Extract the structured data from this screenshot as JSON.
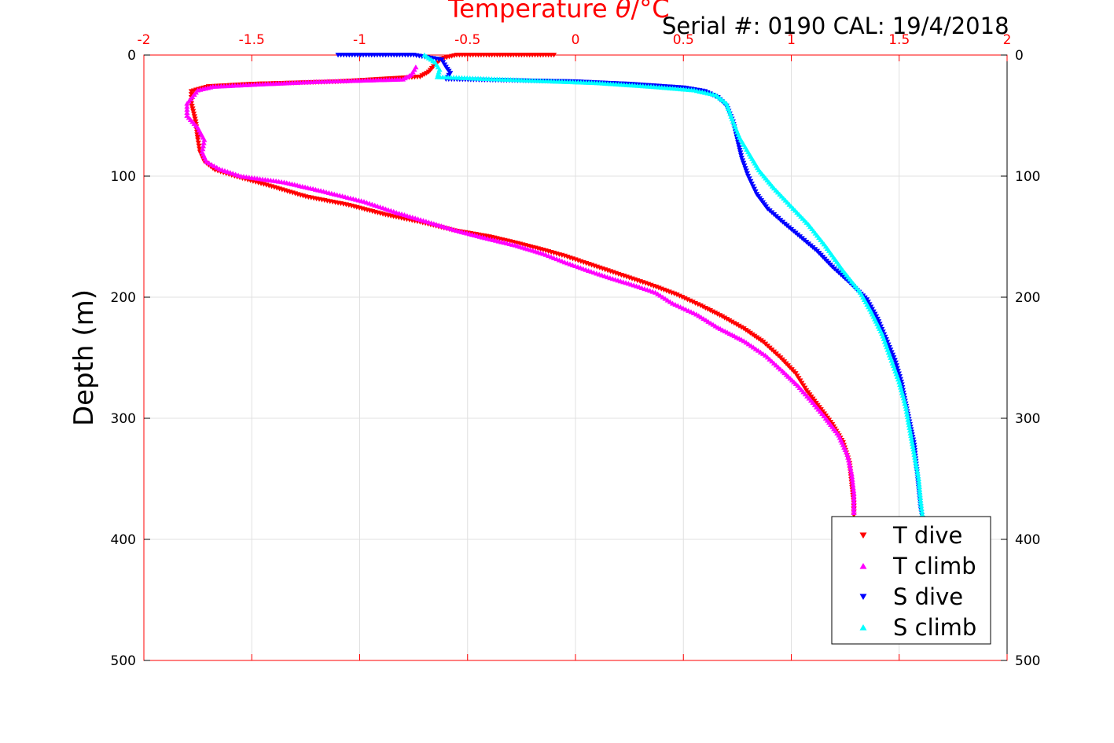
{
  "chart_data": {
    "type": "scatter",
    "title_prefix": "Temperature ",
    "title_symbol": "θ",
    "title_suffix": "/°C",
    "annotation": "Serial #: 0190  CAL: 19/4/2018",
    "xlabel": "",
    "ylabel": "Depth (m)",
    "xlim": [
      -2,
      2
    ],
    "ylim": [
      0,
      500
    ],
    "y_reversed": true,
    "x_ticks": [
      "-2",
      "-1.5",
      "-1",
      "-0.5",
      "0",
      "0.5",
      "1",
      "1.5",
      "2"
    ],
    "y_ticks": [
      "0",
      "100",
      "200",
      "300",
      "400",
      "500"
    ],
    "grid": true,
    "legend_position": "bottom-right",
    "series": [
      {
        "name": "T dive",
        "marker": "triangle-down",
        "color": "#ff0000",
        "points": [
          [
            -0.1,
            0
          ],
          [
            -0.3,
            0
          ],
          [
            -0.45,
            0
          ],
          [
            -0.55,
            0
          ],
          [
            -0.62,
            3
          ],
          [
            -0.65,
            8
          ],
          [
            -0.68,
            14
          ],
          [
            -0.72,
            18
          ],
          [
            -1.1,
            22
          ],
          [
            -1.5,
            24
          ],
          [
            -1.7,
            26
          ],
          [
            -1.78,
            30
          ],
          [
            -1.78,
            40
          ],
          [
            -1.76,
            55
          ],
          [
            -1.75,
            70
          ],
          [
            -1.74,
            80
          ],
          [
            -1.72,
            88
          ],
          [
            -1.67,
            95
          ],
          [
            -1.58,
            100
          ],
          [
            -1.42,
            108
          ],
          [
            -1.25,
            117
          ],
          [
            -1.05,
            124
          ],
          [
            -0.88,
            132
          ],
          [
            -0.72,
            138
          ],
          [
            -0.56,
            145
          ],
          [
            -0.4,
            150
          ],
          [
            -0.28,
            155
          ],
          [
            -0.15,
            161
          ],
          [
            -0.05,
            166
          ],
          [
            0.05,
            172
          ],
          [
            0.15,
            178
          ],
          [
            0.25,
            184
          ],
          [
            0.35,
            190
          ],
          [
            0.47,
            198
          ],
          [
            0.58,
            207
          ],
          [
            0.68,
            216
          ],
          [
            0.78,
            226
          ],
          [
            0.87,
            237
          ],
          [
            0.95,
            250
          ],
          [
            1.02,
            263
          ],
          [
            1.07,
            277
          ],
          [
            1.13,
            291
          ],
          [
            1.19,
            305
          ],
          [
            1.24,
            320
          ],
          [
            1.27,
            337
          ],
          [
            1.28,
            355
          ],
          [
            1.29,
            370
          ],
          [
            1.29,
            380
          ]
        ]
      },
      {
        "name": "T climb",
        "marker": "triangle-up",
        "color": "#ff00ff",
        "points": [
          [
            -0.74,
            10
          ],
          [
            -0.76,
            16
          ],
          [
            -0.8,
            20
          ],
          [
            -1.0,
            21
          ],
          [
            -1.2,
            22
          ],
          [
            -1.45,
            24
          ],
          [
            -1.68,
            26
          ],
          [
            -1.75,
            29
          ],
          [
            -1.8,
            40
          ],
          [
            -1.8,
            50
          ],
          [
            -1.75,
            60
          ],
          [
            -1.72,
            70
          ],
          [
            -1.73,
            80
          ],
          [
            -1.71,
            88
          ],
          [
            -1.65,
            94
          ],
          [
            -1.55,
            100
          ],
          [
            -1.35,
            105
          ],
          [
            -1.18,
            112
          ],
          [
            -0.98,
            121
          ],
          [
            -0.83,
            130
          ],
          [
            -0.68,
            138
          ],
          [
            -0.55,
            145
          ],
          [
            -0.42,
            151
          ],
          [
            -0.28,
            157
          ],
          [
            -0.15,
            164
          ],
          [
            -0.05,
            171
          ],
          [
            0.06,
            178
          ],
          [
            0.16,
            184
          ],
          [
            0.27,
            190
          ],
          [
            0.37,
            196
          ],
          [
            0.45,
            205
          ],
          [
            0.56,
            214
          ],
          [
            0.66,
            225
          ],
          [
            0.78,
            236
          ],
          [
            0.88,
            248
          ],
          [
            0.96,
            261
          ],
          [
            1.03,
            273
          ],
          [
            1.1,
            287
          ],
          [
            1.16,
            300
          ],
          [
            1.22,
            314
          ],
          [
            1.26,
            330
          ],
          [
            1.28,
            346
          ],
          [
            1.29,
            362
          ],
          [
            1.29,
            378
          ]
        ]
      },
      {
        "name": "S dive",
        "marker": "triangle-down",
        "color": "#0000ff",
        "points": [
          [
            -1.1,
            0
          ],
          [
            -0.75,
            0
          ],
          [
            -0.62,
            4
          ],
          [
            -0.6,
            10
          ],
          [
            -0.58,
            15
          ],
          [
            -0.6,
            20
          ],
          [
            0.0,
            22
          ],
          [
            0.25,
            24
          ],
          [
            0.5,
            27
          ],
          [
            0.6,
            30
          ],
          [
            0.66,
            35
          ],
          [
            0.7,
            42
          ],
          [
            0.73,
            55
          ],
          [
            0.75,
            70
          ],
          [
            0.77,
            85
          ],
          [
            0.8,
            100
          ],
          [
            0.84,
            115
          ],
          [
            0.89,
            127
          ],
          [
            0.96,
            138
          ],
          [
            1.04,
            150
          ],
          [
            1.12,
            162
          ],
          [
            1.19,
            175
          ],
          [
            1.27,
            188
          ],
          [
            1.35,
            202
          ],
          [
            1.4,
            218
          ],
          [
            1.44,
            235
          ],
          [
            1.48,
            252
          ],
          [
            1.51,
            270
          ],
          [
            1.53,
            288
          ],
          [
            1.55,
            305
          ],
          [
            1.57,
            322
          ],
          [
            1.58,
            340
          ],
          [
            1.59,
            357
          ],
          [
            1.6,
            375
          ],
          [
            1.61,
            385
          ]
        ]
      },
      {
        "name": "S climb",
        "marker": "triangle-up",
        "color": "#00ffff",
        "points": [
          [
            -0.7,
            0
          ],
          [
            -0.65,
            6
          ],
          [
            -0.63,
            12
          ],
          [
            -0.64,
            18
          ],
          [
            -0.2,
            21
          ],
          [
            0.1,
            23
          ],
          [
            0.35,
            26
          ],
          [
            0.55,
            29
          ],
          [
            0.65,
            33
          ],
          [
            0.7,
            40
          ],
          [
            0.73,
            55
          ],
          [
            0.76,
            68
          ],
          [
            0.8,
            80
          ],
          [
            0.85,
            95
          ],
          [
            0.92,
            110
          ],
          [
            1.0,
            125
          ],
          [
            1.08,
            140
          ],
          [
            1.16,
            158
          ],
          [
            1.24,
            178
          ],
          [
            1.32,
            196
          ],
          [
            1.37,
            212
          ],
          [
            1.42,
            230
          ],
          [
            1.46,
            250
          ],
          [
            1.5,
            270
          ],
          [
            1.53,
            290
          ],
          [
            1.55,
            310
          ],
          [
            1.57,
            330
          ],
          [
            1.59,
            350
          ],
          [
            1.6,
            370
          ],
          [
            1.61,
            384
          ]
        ]
      }
    ]
  }
}
